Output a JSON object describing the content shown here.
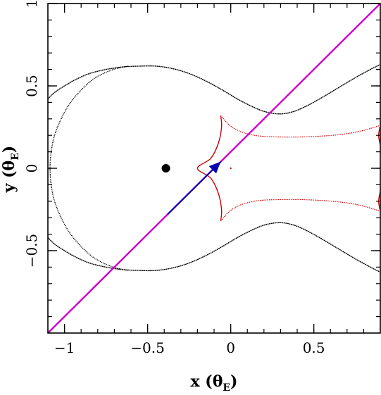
{
  "chart_data": {
    "type": "line",
    "title": "",
    "xlabel": {
      "base": "x (θ",
      "sub": "E",
      "close": ")"
    },
    "ylabel": {
      "base": "y (θ",
      "sub": "E",
      "close": ")"
    },
    "xlim": [
      -1.1,
      0.9
    ],
    "ylim": [
      -1.0,
      1.0
    ],
    "x_ticks": [
      {
        "value": -1.0,
        "label": "−1"
      },
      {
        "value": -0.5,
        "label": "−0.5"
      },
      {
        "value": 0.0,
        "label": "0"
      },
      {
        "value": 0.5,
        "label": "0.5"
      }
    ],
    "y_ticks": [
      {
        "value": -0.5,
        "label": "−0.5"
      },
      {
        "value": 0.0,
        "label": "0"
      },
      {
        "value": 0.5,
        "label": "0.5"
      },
      {
        "value": 1.0,
        "label": "1"
      }
    ],
    "x_minor_step": 0.1,
    "y_minor_step": 0.1,
    "grid": false,
    "colors": {
      "critical_curve": "#000000",
      "caustic": "#cc0000",
      "source_trajectory": "#cc00cc",
      "trajectory_segment": "#0000b0",
      "lens": "#000000",
      "axes": "#000000"
    },
    "series": [
      {
        "kind": "critical-curve",
        "upper": [
          [
            -1.1,
            0.42
          ],
          [
            -1.06,
            0.46
          ],
          [
            -1.0,
            0.5
          ],
          [
            -0.93,
            0.54
          ],
          [
            -0.85,
            0.575
          ],
          [
            -0.75,
            0.6
          ],
          [
            -0.65,
            0.615
          ],
          [
            -0.55,
            0.62
          ],
          [
            -0.45,
            0.62
          ],
          [
            -0.35,
            0.605
          ],
          [
            -0.25,
            0.575
          ],
          [
            -0.15,
            0.53
          ],
          [
            -0.05,
            0.475
          ],
          [
            0.05,
            0.415
          ],
          [
            0.15,
            0.365
          ],
          [
            0.22,
            0.34
          ],
          [
            0.3,
            0.33
          ],
          [
            0.38,
            0.345
          ],
          [
            0.46,
            0.38
          ],
          [
            0.55,
            0.43
          ],
          [
            0.65,
            0.49
          ],
          [
            0.75,
            0.55
          ],
          [
            0.85,
            0.605
          ],
          [
            0.9,
            0.63
          ]
        ],
        "lower": [
          [
            -1.1,
            -0.42
          ],
          [
            -1.06,
            -0.46
          ],
          [
            -1.0,
            -0.5
          ],
          [
            -0.93,
            -0.54
          ],
          [
            -0.85,
            -0.575
          ],
          [
            -0.75,
            -0.6
          ],
          [
            -0.65,
            -0.615
          ],
          [
            -0.55,
            -0.62
          ],
          [
            -0.45,
            -0.62
          ],
          [
            -0.35,
            -0.605
          ],
          [
            -0.25,
            -0.575
          ],
          [
            -0.15,
            -0.53
          ],
          [
            -0.05,
            -0.475
          ],
          [
            0.05,
            -0.415
          ],
          [
            0.15,
            -0.365
          ],
          [
            0.22,
            -0.34
          ],
          [
            0.3,
            -0.33
          ],
          [
            0.38,
            -0.345
          ],
          [
            0.46,
            -0.38
          ],
          [
            0.55,
            -0.43
          ],
          [
            0.65,
            -0.49
          ],
          [
            0.75,
            -0.55
          ],
          [
            0.85,
            -0.605
          ],
          [
            0.9,
            -0.63
          ]
        ],
        "left_lobe": [
          [
            -0.62,
            0.62
          ],
          [
            -0.72,
            0.595
          ],
          [
            -0.82,
            0.545
          ],
          [
            -0.9,
            0.475
          ],
          [
            -0.97,
            0.39
          ],
          [
            -1.02,
            0.3
          ],
          [
            -1.06,
            0.2
          ],
          [
            -1.08,
            0.1
          ],
          [
            -1.087,
            0.0
          ],
          [
            -1.08,
            -0.1
          ],
          [
            -1.06,
            -0.2
          ],
          [
            -1.02,
            -0.3
          ],
          [
            -0.97,
            -0.39
          ],
          [
            -0.9,
            -0.475
          ],
          [
            -0.82,
            -0.545
          ],
          [
            -0.72,
            -0.595
          ],
          [
            -0.62,
            -0.62
          ]
        ]
      },
      {
        "kind": "caustic",
        "left": [
          [
            -0.06,
            0.32
          ],
          [
            -0.055,
            0.25
          ],
          [
            -0.075,
            0.15
          ],
          [
            -0.12,
            0.06
          ],
          [
            -0.2,
            0.0
          ],
          [
            -0.12,
            -0.06
          ],
          [
            -0.075,
            -0.15
          ],
          [
            -0.055,
            -0.25
          ],
          [
            -0.06,
            -0.32
          ]
        ],
        "top": [
          [
            -0.06,
            0.32
          ],
          [
            0.0,
            0.255
          ],
          [
            0.08,
            0.215
          ],
          [
            0.18,
            0.195
          ],
          [
            0.3,
            0.19
          ],
          [
            0.42,
            0.19
          ],
          [
            0.54,
            0.195
          ],
          [
            0.66,
            0.205
          ],
          [
            0.78,
            0.225
          ],
          [
            0.9,
            0.26
          ]
        ],
        "bottom": [
          [
            -0.06,
            -0.32
          ],
          [
            0.0,
            -0.255
          ],
          [
            0.08,
            -0.215
          ],
          [
            0.18,
            -0.195
          ],
          [
            0.3,
            -0.19
          ],
          [
            0.42,
            -0.19
          ],
          [
            0.54,
            -0.195
          ],
          [
            0.66,
            -0.205
          ],
          [
            0.78,
            -0.225
          ],
          [
            0.9,
            -0.26
          ]
        ],
        "right_arcs": [
          [
            [
              0.9,
              0.26
            ],
            [
              0.89,
              0.2
            ],
            [
              0.9,
              0.14
            ]
          ],
          [
            [
              0.9,
              -0.14
            ],
            [
              0.89,
              -0.2
            ],
            [
              0.9,
              -0.26
            ]
          ]
        ],
        "dot": [
          0.0,
          0.0
        ]
      },
      {
        "kind": "source-trajectory",
        "start": [
          -1.1,
          -1.0
        ],
        "end": [
          0.9,
          1.0
        ]
      },
      {
        "kind": "trajectory-segment",
        "start": [
          -0.38,
          -0.28
        ],
        "end": [
          -0.06,
          0.04
        ]
      },
      {
        "kind": "lens",
        "x": -0.39,
        "y": 0.0
      }
    ]
  }
}
